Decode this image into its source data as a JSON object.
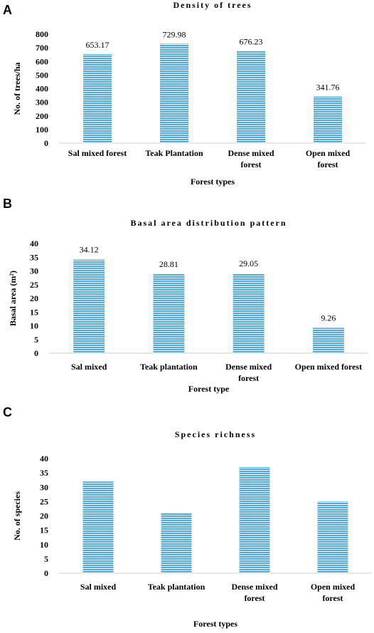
{
  "chart_data": [
    {
      "panel": "A",
      "type": "bar",
      "title": "Density of trees",
      "xlabel": "Forest types",
      "ylabel": "No. of trees/ha",
      "categories": [
        [
          "Sal mixed forest"
        ],
        [
          "Teak Plantation"
        ],
        [
          "Dense mixed",
          "forest"
        ],
        [
          "Open mixed",
          "forest"
        ]
      ],
      "values": [
        653.17,
        729.98,
        676.23,
        341.76
      ],
      "data_labels": [
        "653.17",
        "729.98",
        "676.23",
        "341.76"
      ],
      "ylim": [
        0,
        800
      ],
      "yticks": [
        0,
        100,
        200,
        300,
        400,
        500,
        600,
        700,
        800
      ],
      "color": "#4FA9DC"
    },
    {
      "panel": "B",
      "type": "bar",
      "title": "Basal area distribution pattern",
      "xlabel": "Forest type",
      "ylabel": "Basal area (m²)",
      "categories": [
        [
          "Sal mixed"
        ],
        [
          "Teak plantation"
        ],
        [
          "Dense mixed",
          "forest"
        ],
        [
          "Open mixed forest"
        ]
      ],
      "values": [
        34.12,
        28.81,
        29.05,
        9.26
      ],
      "data_labels": [
        "34.12",
        "28.81",
        "29.05",
        "9.26"
      ],
      "ylim": [
        0,
        40
      ],
      "yticks": [
        0,
        5,
        10,
        15,
        20,
        25,
        30,
        35,
        40
      ],
      "color": "#4FA9DC"
    },
    {
      "panel": "C",
      "type": "bar",
      "title": "Species richness",
      "xlabel": "Forest types",
      "ylabel": "No. of species",
      "categories": [
        [
          "Sal mixed"
        ],
        [
          "Teak plantation"
        ],
        [
          "Dense mixed",
          "forest"
        ],
        [
          "Open mixed",
          "forest"
        ]
      ],
      "values": [
        32,
        21,
        37,
        25
      ],
      "data_labels": [],
      "ylim": [
        0,
        40
      ],
      "yticks": [
        0,
        5,
        10,
        15,
        20,
        25,
        30,
        35,
        40
      ],
      "color": "#4FA9DC"
    }
  ]
}
